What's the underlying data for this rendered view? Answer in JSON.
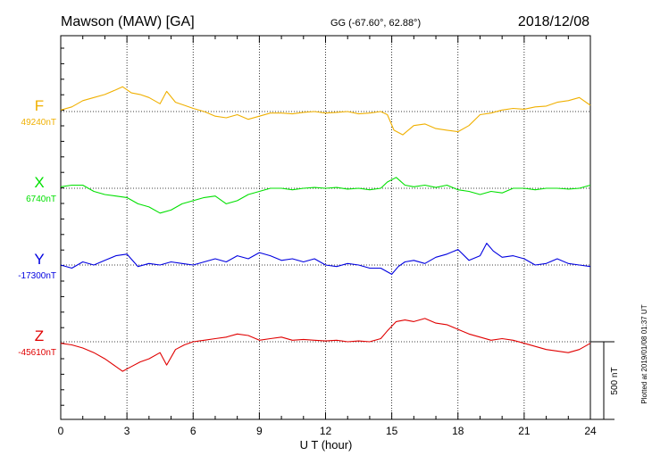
{
  "header": {
    "station": "Mawson (MAW)  [GA]",
    "coords": "GG (-67.60°,  62.88°)",
    "date": "2018/12/08"
  },
  "footer_note": "Plotted at 2019/01/08 01:37 UT",
  "colors": {
    "F": "#f0b000",
    "X": "#00e000",
    "Y": "#0000e0",
    "Z": "#e00000"
  },
  "chart_data": {
    "type": "line",
    "title": "Mawson (MAW)  [GA]",
    "xlabel": "U T (hour)",
    "xlim": [
      0,
      24
    ],
    "xticks": [
      0,
      3,
      6,
      9,
      12,
      15,
      18,
      21,
      24
    ],
    "scale_bar_label": "500 nT",
    "series": [
      {
        "name": "F",
        "baseline_label": "49240nT",
        "baseline": 49240,
        "color": "#f0b000",
        "x": [
          0,
          0.5,
          1,
          1.5,
          2,
          2.5,
          2.8,
          3.2,
          3.6,
          4,
          4.5,
          4.8,
          5.2,
          5.6,
          6,
          6.5,
          7,
          7.5,
          8,
          8.5,
          9,
          9.5,
          10,
          10.5,
          11,
          11.5,
          12,
          12.5,
          13,
          13.5,
          14,
          14.5,
          14.8,
          15.1,
          15.5,
          16,
          16.5,
          17,
          17.5,
          18,
          18.5,
          19,
          19.5,
          20,
          20.5,
          21,
          21.5,
          22,
          22.5,
          23,
          23.5,
          24
        ],
        "values": [
          49250,
          49270,
          49310,
          49330,
          49350,
          49380,
          49400,
          49360,
          49350,
          49330,
          49290,
          49370,
          49300,
          49280,
          49260,
          49240,
          49210,
          49200,
          49220,
          49190,
          49210,
          49230,
          49230,
          49225,
          49235,
          49240,
          49230,
          49235,
          49240,
          49225,
          49230,
          49240,
          49220,
          49120,
          49090,
          49150,
          49160,
          49130,
          49120,
          49110,
          49150,
          49220,
          49230,
          49250,
          49260,
          49255,
          49270,
          49275,
          49300,
          49310,
          49330,
          49280
        ]
      },
      {
        "name": "X",
        "baseline_label": "6740nT",
        "baseline": 6740,
        "color": "#00e000",
        "x": [
          0,
          0.5,
          1,
          1.5,
          2,
          2.5,
          3,
          3.5,
          4,
          4.5,
          5,
          5.5,
          6,
          6.5,
          7,
          7.5,
          8,
          8.5,
          9,
          9.5,
          10,
          10.5,
          11,
          11.5,
          12,
          12.5,
          13,
          13.5,
          14,
          14.5,
          14.8,
          15.2,
          15.6,
          16,
          16.5,
          17,
          17.5,
          18,
          18.5,
          19,
          19.5,
          20,
          20.5,
          21,
          21.5,
          22,
          22.5,
          23,
          23.5,
          24
        ],
        "values": [
          6750,
          6760,
          6760,
          6720,
          6700,
          6690,
          6680,
          6640,
          6620,
          6580,
          6600,
          6640,
          6660,
          6680,
          6690,
          6640,
          6660,
          6700,
          6720,
          6740,
          6740,
          6730,
          6740,
          6745,
          6740,
          6745,
          6735,
          6740,
          6730,
          6740,
          6780,
          6810,
          6760,
          6750,
          6760,
          6745,
          6760,
          6730,
          6720,
          6700,
          6720,
          6710,
          6740,
          6740,
          6730,
          6740,
          6740,
          6735,
          6740,
          6760
        ]
      },
      {
        "name": "Y",
        "baseline_label": "-17300nT",
        "baseline": -17300,
        "color": "#0000e0",
        "x": [
          0,
          0.5,
          1,
          1.5,
          2,
          2.5,
          3,
          3.5,
          4,
          4.5,
          5,
          5.5,
          6,
          6.5,
          7,
          7.5,
          8,
          8.5,
          9,
          9.5,
          10,
          10.5,
          11,
          11.5,
          12,
          12.5,
          13,
          13.5,
          14,
          14.5,
          15,
          15.3,
          15.6,
          16,
          16.5,
          17,
          17.5,
          18,
          18.5,
          19,
          19.3,
          19.6,
          20,
          20.5,
          21,
          21.5,
          22,
          22.5,
          23,
          23.5,
          24
        ],
        "values": [
          -17300,
          -17320,
          -17280,
          -17300,
          -17270,
          -17240,
          -17230,
          -17310,
          -17290,
          -17300,
          -17280,
          -17290,
          -17300,
          -17280,
          -17260,
          -17280,
          -17240,
          -17260,
          -17220,
          -17240,
          -17270,
          -17260,
          -17280,
          -17260,
          -17300,
          -17310,
          -17290,
          -17300,
          -17320,
          -17320,
          -17360,
          -17310,
          -17280,
          -17270,
          -17290,
          -17250,
          -17230,
          -17200,
          -17270,
          -17240,
          -17160,
          -17210,
          -17250,
          -17240,
          -17260,
          -17300,
          -17290,
          -17260,
          -17290,
          -17300,
          -17310
        ]
      },
      {
        "name": "Z",
        "baseline_label": "-45610nT",
        "baseline": -45610,
        "color": "#e00000",
        "x": [
          0,
          0.5,
          1,
          1.5,
          2,
          2.5,
          2.8,
          3.2,
          3.6,
          4,
          4.5,
          4.8,
          5.2,
          5.6,
          6,
          6.5,
          7,
          7.5,
          8,
          8.5,
          9,
          9.5,
          10,
          10.5,
          11,
          11.5,
          12,
          12.5,
          13,
          13.5,
          14,
          14.5,
          14.8,
          15.2,
          15.6,
          16,
          16.5,
          17,
          17.5,
          18,
          18.5,
          19,
          19.5,
          20,
          20.5,
          21,
          21.5,
          22,
          22.5,
          23,
          23.5,
          24
        ],
        "values": [
          -45620,
          -45630,
          -45650,
          -45680,
          -45720,
          -45770,
          -45800,
          -45770,
          -45740,
          -45720,
          -45680,
          -45760,
          -45660,
          -45630,
          -45610,
          -45600,
          -45590,
          -45580,
          -45560,
          -45570,
          -45600,
          -45590,
          -45580,
          -45600,
          -45595,
          -45600,
          -45605,
          -45600,
          -45610,
          -45605,
          -45610,
          -45590,
          -45540,
          -45480,
          -45470,
          -45480,
          -45460,
          -45490,
          -45500,
          -45530,
          -45560,
          -45580,
          -45600,
          -45590,
          -45600,
          -45620,
          -45640,
          -45660,
          -45670,
          -45680,
          -45660,
          -45620
        ]
      }
    ]
  }
}
